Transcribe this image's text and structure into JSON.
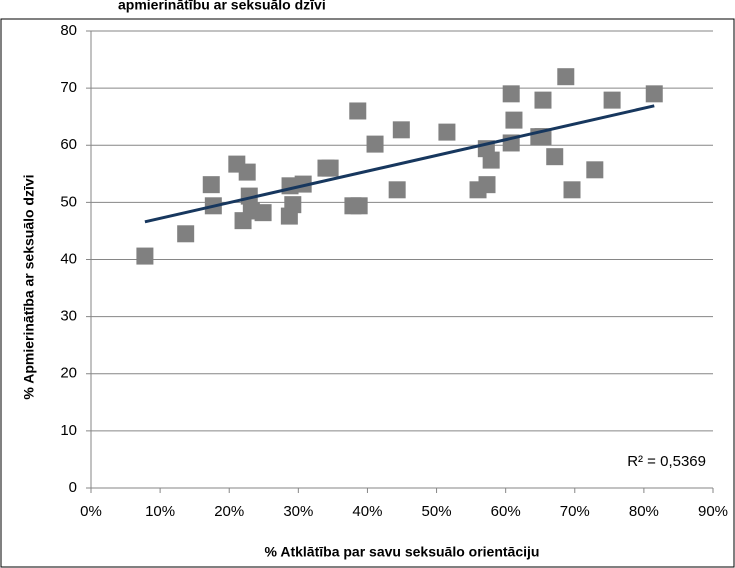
{
  "chart_data": {
    "type": "scatter",
    "title": "apmierinātību ar seksuālo dzīvi",
    "x_label": "% Atklātība par savu seksuālo orientāciju",
    "y_label": "% Apmierinātība ar seksuālo dzīvi",
    "x": [
      7.8,
      13.7,
      17.4,
      17.7,
      21.1,
      22.0,
      22.6,
      22.9,
      23.2,
      24.9,
      28.7,
      28.8,
      29.2,
      30.7,
      34.0,
      34.6,
      37.9,
      38.6,
      38.8,
      41.1,
      44.3,
      44.9,
      51.5,
      56.0,
      57.2,
      57.3,
      57.9,
      60.8,
      60.8,
      61.2,
      64.8,
      65.4,
      65.4,
      67.1,
      68.7,
      69.6,
      72.9,
      75.4,
      81.5
    ],
    "values": [
      40.6,
      44.5,
      53.1,
      49.4,
      56.7,
      46.8,
      55.3,
      51.1,
      48.5,
      48.2,
      47.6,
      52.9,
      49.6,
      53.2,
      56.0,
      56.0,
      49.4,
      66.0,
      49.4,
      60.2,
      52.2,
      62.7,
      62.3,
      52.2,
      59.4,
      53.1,
      57.4,
      69.0,
      60.4,
      64.4,
      61.5,
      67.9,
      61.5,
      58.0,
      72.0,
      52.2,
      55.7,
      67.9,
      69.0
    ],
    "color": "#808080",
    "trendline": {
      "x": [
        7.8,
        81.5
      ],
      "values": [
        46.6,
        66.9
      ],
      "color": "#17375e"
    },
    "annotation": "R² = 0,5369",
    "xlim": [
      0,
      90
    ],
    "xticks": [
      {
        "value": 0,
        "label": "0%"
      },
      {
        "value": 10,
        "label": "10%"
      },
      {
        "value": 20,
        "label": "20%"
      },
      {
        "value": 30,
        "label": "30%"
      },
      {
        "value": 40,
        "label": "40%"
      },
      {
        "value": 50,
        "label": "50%"
      },
      {
        "value": 60,
        "label": "60%"
      },
      {
        "value": 70,
        "label": "70%"
      },
      {
        "value": 80,
        "label": "80%"
      },
      {
        "value": 90,
        "label": "90%"
      }
    ],
    "ylim": [
      0,
      80
    ],
    "yticks": [
      0,
      10,
      20,
      30,
      40,
      50,
      60,
      70,
      80
    ],
    "grid": true
  }
}
